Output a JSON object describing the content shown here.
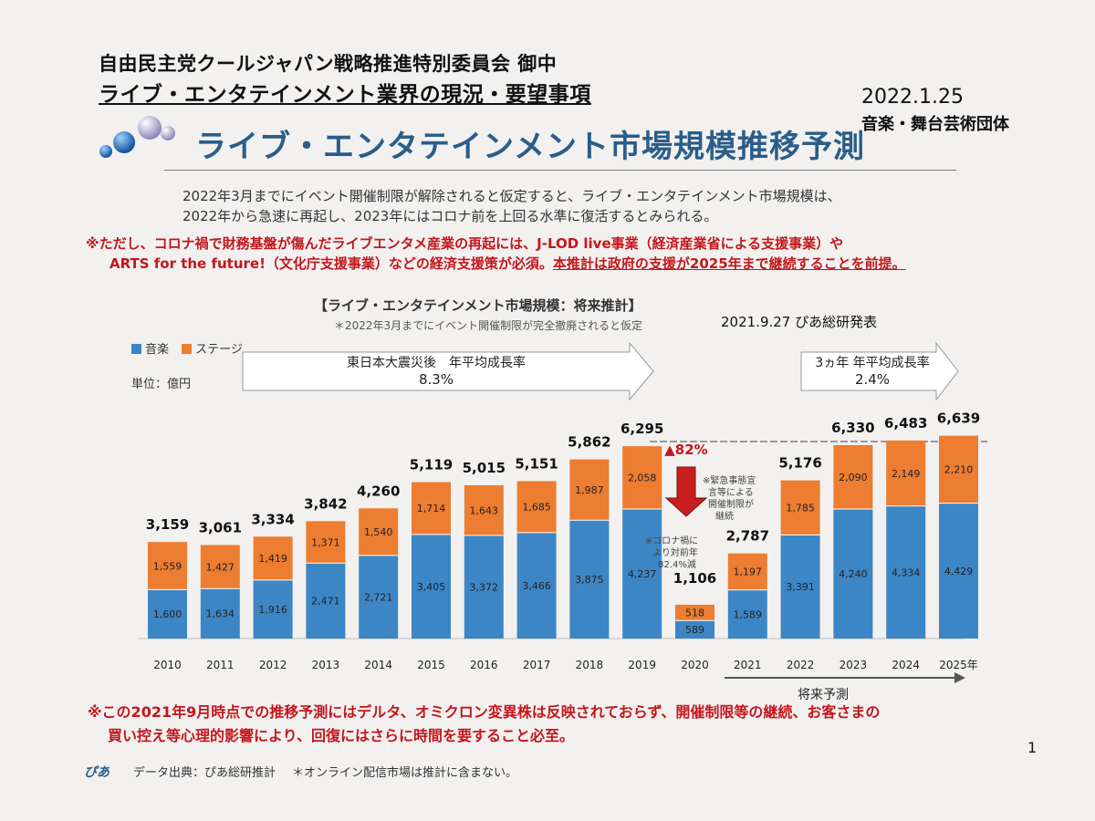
{
  "header": {
    "org": "自由民主党クールジャパン戦略推進特別委員会 御中",
    "doc_title": "ライブ・エンタテインメント業界の現況・要望事項",
    "date": "2022.1.25",
    "author": "音楽・舞台芸術団体"
  },
  "main_title": "ライブ・エンタテインメント市場規模推移予測",
  "summary": [
    "2022年3月までにイベント開催制限が解除されると仮定すると、ライブ・エンタテインメント市場規模は、",
    "2022年から急速に再起し、2023年にはコロナ前を上回る水準に復活するとみられる。"
  ],
  "notice": {
    "line1": "※ただし、コロナ禍で財務基盤が傷んだライブエンタメ産業の再起には、J-LOD live事業（経済産業省による支援事業）や",
    "line2_a": "ARTS for the future!（文化庁支援事業）などの経済支援策が必須。",
    "line2_b": "本推計は政府の支援が2025年まで継続することを前提。"
  },
  "chart_data": {
    "type": "bar",
    "title": "【ライブ・エンタテインメント市場規模：将来推計】",
    "subtitle": "＊2022年3月までにイベント開催制限が完全撤廃されると仮定",
    "source_date": "2021.9.27 ぴあ総研発表",
    "unit": "単位：億円",
    "stacked": true,
    "categories": [
      "2010",
      "2011",
      "2012",
      "2013",
      "2014",
      "2015",
      "2016",
      "2017",
      "2018",
      "2019",
      "2020",
      "2021",
      "2022",
      "2023",
      "2024",
      "2025年"
    ],
    "series": [
      {
        "name": "音楽",
        "color": "#3d86c6",
        "values": [
          1600,
          1634,
          1916,
          2471,
          2721,
          3405,
          3372,
          3466,
          3875,
          4237,
          589,
          1589,
          3391,
          4240,
          4334,
          4429
        ]
      },
      {
        "name": "ステージ",
        "color": "#ed7d31",
        "values": [
          1559,
          1427,
          1419,
          1371,
          1540,
          1714,
          1643,
          1685,
          1987,
          2058,
          518,
          1197,
          1785,
          2090,
          2149,
          2210
        ]
      }
    ],
    "totals": [
      "3,159",
      "3,061",
      "3,334",
      "3,842",
      "4,260",
      "5,119",
      "5,015",
      "5,151",
      "5,862",
      "6,295",
      "1,106",
      "2,787",
      "5,176",
      "6,330",
      "6,483",
      "6,639"
    ],
    "music_labels": [
      "1,600",
      "1,634",
      "1,916",
      "2,471",
      "2,721",
      "3,405",
      "3,372",
      "3,466",
      "3,875",
      "4,237",
      "589",
      "1,589",
      "3,391",
      "4,240",
      "4,334",
      "4,429"
    ],
    "stage_labels": [
      "1,559",
      "1,427",
      "1,419",
      "1,371",
      "1,540",
      "1,714",
      "1,643",
      "1,685",
      "1,987",
      "2,058",
      "518",
      "1,197",
      "1,785",
      "2,090",
      "2,149",
      "2,210"
    ],
    "ylim": [
      0,
      7000
    ],
    "legend_position": "top-left",
    "grid": false,
    "annotations": {
      "growth_past_label": "東日本大震災後　年平均成長率",
      "growth_past_value": "8.3%",
      "growth_future_label": "3ヵ年 年平均成長率",
      "growth_future_value": "2.4%",
      "drop_label": "▲82%",
      "covid_note": [
        "※コロナ禍に",
        "より対前年",
        "82.4%減"
      ],
      "emergency_note": [
        "※緊急事態宣",
        "言等による",
        "開催制限が",
        "継続"
      ],
      "forecast_label": "将来予測"
    }
  },
  "bottom_note": {
    "line1": "※この2021年9月時点での推移予測にはデルタ、オミクロン変異株は反映されておらず、開催制限等の継続、お客さまの",
    "line2": "買い控え等心理的影響により、回復にはさらに時間を要すること必至。"
  },
  "page_number": "1",
  "footer": {
    "logo": "ぴあ",
    "source": "データ出典：ぴあ総研推計",
    "note": "＊オンライン配信市場は推計に含まない。"
  },
  "colors": {
    "music": "#3d86c6",
    "stage": "#ed7d31",
    "accent_red": "#c4161c",
    "title_blue": "#2a5d8a"
  }
}
